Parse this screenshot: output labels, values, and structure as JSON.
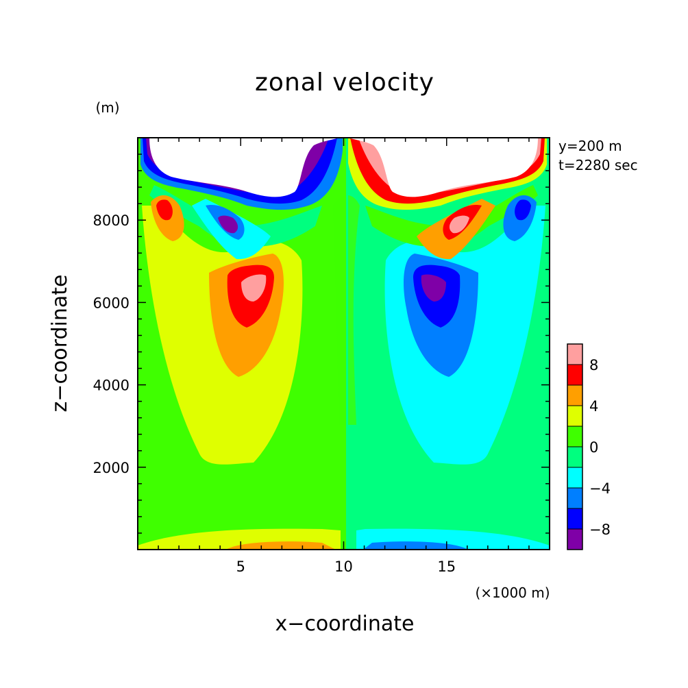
{
  "chart_data": {
    "type": "heatmap",
    "title": "zonal velocity",
    "xlabel": "x−coordinate",
    "ylabel": "z−coordinate",
    "x_unit": "(×1000 m)",
    "y_unit": "(m)",
    "xlim": [
      0,
      20
    ],
    "ylim": [
      0,
      10000
    ],
    "x_ticks": [
      5,
      10,
      15
    ],
    "x_tick_labels": [
      "5",
      "10",
      "15"
    ],
    "y_ticks": [
      2000,
      4000,
      6000,
      8000
    ],
    "y_tick_labels": [
      "2000",
      "4000",
      "6000",
      "8000"
    ],
    "info_lines": [
      "y=200 m",
      "t=2280 sec"
    ],
    "colorbar": {
      "levels": [
        -10,
        -8,
        -6,
        -4,
        -2,
        0,
        2,
        4,
        6,
        8,
        10
      ],
      "colors": [
        "#7f00a7",
        "#0000ff",
        "#007fff",
        "#00ffff",
        "#00ff7f",
        "#3fff00",
        "#dfff00",
        "#ff9f00",
        "#ff0000",
        "#ff9f9f"
      ],
      "tick_values": [
        -8,
        -4,
        0,
        4,
        8
      ],
      "tick_labels": [
        "−8",
        "−4",
        "0",
        "4",
        "8"
      ]
    },
    "features": [
      {
        "name": "lower-left-positive-core",
        "x": 5.7,
        "z": 6300,
        "value": 9
      },
      {
        "name": "lower-right-negative-core",
        "x": 14.8,
        "z": 6300,
        "value": -9
      },
      {
        "name": "upper-left-positive-core",
        "x": 1.4,
        "z": 8200,
        "value": 7
      },
      {
        "name": "upper-left-negative-core",
        "x": 4.4,
        "z": 7800,
        "value": -9
      },
      {
        "name": "upper-right-positive-core",
        "x": 16.0,
        "z": 7800,
        "value": 9
      },
      {
        "name": "upper-right-negative-core",
        "x": 19.0,
        "z": 8200,
        "value": -7
      },
      {
        "name": "bottom-left-positive-band",
        "x": 6.0,
        "z": 100,
        "value": 5
      },
      {
        "name": "bottom-right-negative-band",
        "x": 14.0,
        "z": 100,
        "value": -5
      }
    ]
  }
}
